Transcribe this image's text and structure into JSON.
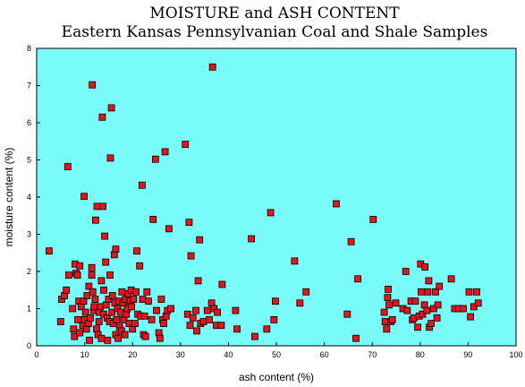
{
  "chart_data": {
    "type": "scatter",
    "title": "MOISTURE and ASH CONTENT",
    "subtitle": "Eastern Kansas Pennsylvanian Coal and Shale Samples",
    "xlabel": "ash content  (%)",
    "ylabel": "moisture  content  (%)",
    "xlim": [
      0,
      100
    ],
    "ylim": [
      0,
      8
    ],
    "xticks": [
      "0",
      "10",
      "20",
      "30",
      "40",
      "50",
      "60",
      "70",
      "80",
      "90",
      "100"
    ],
    "yticks": [
      "0",
      "1",
      "2",
      "3",
      "4",
      "5",
      "6",
      "7",
      "8"
    ],
    "grid": false,
    "legend": "none",
    "colors": {
      "plot_bg": "#79fbf9",
      "marker_fill": "#e8141c",
      "marker_edge": "#000000"
    },
    "series": [
      {
        "marker": "square",
        "points": [
          [
            2.6,
            2.55
          ],
          [
            5.0,
            0.65
          ],
          [
            5.2,
            1.25
          ],
          [
            5.8,
            1.35
          ],
          [
            6.2,
            1.5
          ],
          [
            6.5,
            4.82
          ],
          [
            6.7,
            1.9
          ],
          [
            7.5,
            1.0
          ],
          [
            7.7,
            0.45
          ],
          [
            7.9,
            0.25
          ],
          [
            8.0,
            2.2
          ],
          [
            8.2,
            1.95
          ],
          [
            8.5,
            1.9
          ],
          [
            8.6,
            0.7
          ],
          [
            8.8,
            1.2
          ],
          [
            9.0,
            2.15
          ],
          [
            9.0,
            0.35
          ],
          [
            9.3,
            1.05
          ],
          [
            9.6,
            0.55
          ],
          [
            9.8,
            1.2
          ],
          [
            9.9,
            4.02
          ],
          [
            10.0,
            0.7
          ],
          [
            10.2,
            0.9
          ],
          [
            10.4,
            0.45
          ],
          [
            10.5,
            1.35
          ],
          [
            10.8,
            0.6
          ],
          [
            10.9,
            1.6
          ],
          [
            11.0,
            0.15
          ],
          [
            11.2,
            0.75
          ],
          [
            11.5,
            2.1
          ],
          [
            11.5,
            1.9
          ],
          [
            11.6,
            7.02
          ],
          [
            11.7,
            1.45
          ],
          [
            11.9,
            0.95
          ],
          [
            12.0,
            1.05
          ],
          [
            12.2,
            1.25
          ],
          [
            12.3,
            3.38
          ],
          [
            12.5,
            0.45
          ],
          [
            12.6,
            3.75
          ],
          [
            12.8,
            0.3
          ],
          [
            13.0,
            0.9
          ],
          [
            13.0,
            0.65
          ],
          [
            13.3,
            1.05
          ],
          [
            13.5,
            0.2
          ],
          [
            13.5,
            1.75
          ],
          [
            13.7,
            6.15
          ],
          [
            13.8,
            3.75
          ],
          [
            14.0,
            1.5
          ],
          [
            14.0,
            0.85
          ],
          [
            14.2,
            2.95
          ],
          [
            14.4,
            2.25
          ],
          [
            14.5,
            1.1
          ],
          [
            14.7,
            0.75
          ],
          [
            14.8,
            0.15
          ],
          [
            15.0,
            1.25
          ],
          [
            15.2,
            0.65
          ],
          [
            15.3,
            1.9
          ],
          [
            15.4,
            5.05
          ],
          [
            15.6,
            6.4
          ],
          [
            15.7,
            0.9
          ],
          [
            15.8,
            1.35
          ],
          [
            16.0,
            0.6
          ],
          [
            16.2,
            2.45
          ],
          [
            16.3,
            1.15
          ],
          [
            16.5,
            2.6
          ],
          [
            16.5,
            0.3
          ],
          [
            16.7,
            0.7
          ],
          [
            16.9,
            1.0
          ],
          [
            17.0,
            0.2
          ],
          [
            17.2,
            1.2
          ],
          [
            17.3,
            0.5
          ],
          [
            17.5,
            0.9
          ],
          [
            17.7,
            0.4
          ],
          [
            17.8,
            1.45
          ],
          [
            18.0,
            1.15
          ],
          [
            18.2,
            0.7
          ],
          [
            18.4,
            0.3
          ],
          [
            18.5,
            1.25
          ],
          [
            18.7,
            0.85
          ],
          [
            18.9,
            1.0
          ],
          [
            19.1,
            1.4
          ],
          [
            19.3,
            0.6
          ],
          [
            19.5,
            1.2
          ],
          [
            19.7,
            1.5
          ],
          [
            19.8,
            1.05
          ],
          [
            20.0,
            0.45
          ],
          [
            20.2,
            1.25
          ],
          [
            20.5,
            0.6
          ],
          [
            20.7,
            1.45
          ],
          [
            20.9,
            2.55
          ],
          [
            21.1,
            0.85
          ],
          [
            21.5,
            2.15
          ],
          [
            21.7,
            0.8
          ],
          [
            22.0,
            4.32
          ],
          [
            22.1,
            1.25
          ],
          [
            22.3,
            0.3
          ],
          [
            22.5,
            0.8
          ],
          [
            22.7,
            0.25
          ],
          [
            23.0,
            1.45
          ],
          [
            23.3,
            1.2
          ],
          [
            24.0,
            0.7
          ],
          [
            24.3,
            3.4
          ],
          [
            24.8,
            5.02
          ],
          [
            25.0,
            0.95
          ],
          [
            25.5,
            0.35
          ],
          [
            25.7,
            0.2
          ],
          [
            26.0,
            1.25
          ],
          [
            26.3,
            0.7
          ],
          [
            26.5,
            0.6
          ],
          [
            26.8,
            5.22
          ],
          [
            27.0,
            0.8
          ],
          [
            27.3,
            0.95
          ],
          [
            27.6,
            3.15
          ],
          [
            28.0,
            1.0
          ],
          [
            31.0,
            5.42
          ],
          [
            31.5,
            0.85
          ],
          [
            31.8,
            3.32
          ],
          [
            32.0,
            0.55
          ],
          [
            32.2,
            2.42
          ],
          [
            32.6,
            0.75
          ],
          [
            33.2,
            0.95
          ],
          [
            33.4,
            0.4
          ],
          [
            33.7,
            1.75
          ],
          [
            34.0,
            2.85
          ],
          [
            34.2,
            0.6
          ],
          [
            34.8,
            0.65
          ],
          [
            35.6,
            0.95
          ],
          [
            36.0,
            0.7
          ],
          [
            36.5,
            1.15
          ],
          [
            36.7,
            7.5
          ],
          [
            37.0,
            1.0
          ],
          [
            37.5,
            0.55
          ],
          [
            37.7,
            0.9
          ],
          [
            38.5,
            0.55
          ],
          [
            38.7,
            1.65
          ],
          [
            41.5,
            0.95
          ],
          [
            41.8,
            0.45
          ],
          [
            44.8,
            2.88
          ],
          [
            45.5,
            0.25
          ],
          [
            48.0,
            0.45
          ],
          [
            48.8,
            3.58
          ],
          [
            49.5,
            0.7
          ],
          [
            49.8,
            1.2
          ],
          [
            53.8,
            2.28
          ],
          [
            54.9,
            1.15
          ],
          [
            56.2,
            1.45
          ],
          [
            62.5,
            3.82
          ],
          [
            64.8,
            0.85
          ],
          [
            65.6,
            2.8
          ],
          [
            66.6,
            0.2
          ],
          [
            67.0,
            1.8
          ],
          [
            70.2,
            3.4
          ],
          [
            72.5,
            0.9
          ],
          [
            72.7,
            0.65
          ],
          [
            73.0,
            0.45
          ],
          [
            73.2,
            1.3
          ],
          [
            73.3,
            1.52
          ],
          [
            73.5,
            1.1
          ],
          [
            73.9,
            0.65
          ],
          [
            74.2,
            0.7
          ],
          [
            74.9,
            1.15
          ],
          [
            76.4,
            1.0
          ],
          [
            77.0,
            2.0
          ],
          [
            77.3,
            0.95
          ],
          [
            78.1,
            1.2
          ],
          [
            78.4,
            0.7
          ],
          [
            78.7,
            0.75
          ],
          [
            79.0,
            1.2
          ],
          [
            79.5,
            0.5
          ],
          [
            79.8,
            0.8
          ],
          [
            80.1,
            2.2
          ],
          [
            80.2,
            1.45
          ],
          [
            80.5,
            0.85
          ],
          [
            80.9,
            1.1
          ],
          [
            81.0,
            2.12
          ],
          [
            81.4,
            0.95
          ],
          [
            81.6,
            1.45
          ],
          [
            81.9,
            0.5
          ],
          [
            81.8,
            1.75
          ],
          [
            82.3,
            0.6
          ],
          [
            82.8,
            1.0
          ],
          [
            83.2,
            1.45
          ],
          [
            83.5,
            0.75
          ],
          [
            83.7,
            1.1
          ],
          [
            84.0,
            1.6
          ],
          [
            86.5,
            1.8
          ],
          [
            87.2,
            1.0
          ],
          [
            88.0,
            1.0
          ],
          [
            89.0,
            1.0
          ],
          [
            90.2,
            1.45
          ],
          [
            90.5,
            0.78
          ],
          [
            91.2,
            1.05
          ],
          [
            91.8,
            1.45
          ],
          [
            92.1,
            1.15
          ]
        ]
      }
    ]
  }
}
